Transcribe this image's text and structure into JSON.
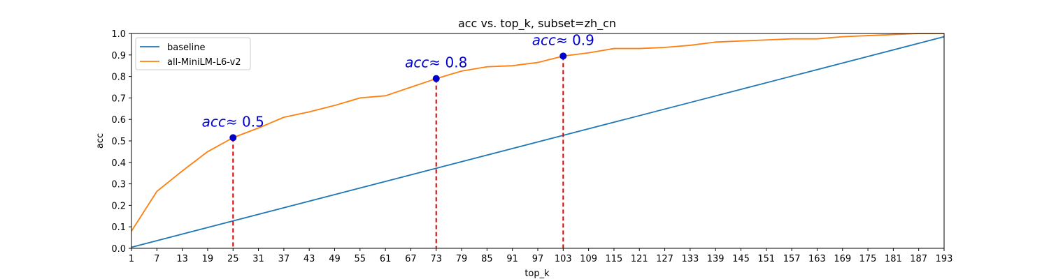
{
  "chart_data": {
    "type": "line",
    "title": "acc vs. top_k, subset=zh_cn",
    "xlabel": "top_k",
    "ylabel": "acc",
    "xlim": [
      1,
      193
    ],
    "ylim": [
      0,
      1.0
    ],
    "x_ticks": [
      1,
      7,
      13,
      19,
      25,
      31,
      37,
      43,
      49,
      55,
      61,
      67,
      73,
      79,
      85,
      91,
      97,
      103,
      109,
      115,
      121,
      127,
      133,
      139,
      145,
      151,
      157,
      163,
      169,
      175,
      181,
      187,
      193
    ],
    "y_ticks": [
      "0.0",
      "0.1",
      "0.2",
      "0.3",
      "0.4",
      "0.5",
      "0.6",
      "0.7",
      "0.8",
      "0.9",
      "1.0"
    ],
    "legend_position": "top-left",
    "grid": false,
    "series": [
      {
        "name": "baseline",
        "color": "#1f77b4",
        "x": [
          1,
          193
        ],
        "y": [
          0.005,
          0.985
        ]
      },
      {
        "name": "all-MiniLM-L6-v2",
        "color": "#ff7f0e",
        "x": [
          1,
          7,
          13,
          19,
          25,
          31,
          37,
          43,
          49,
          55,
          61,
          67,
          73,
          79,
          85,
          91,
          97,
          103,
          109,
          115,
          121,
          127,
          133,
          139,
          145,
          151,
          157,
          163,
          169,
          175,
          181,
          187,
          193
        ],
        "y": [
          0.08,
          0.265,
          0.36,
          0.45,
          0.515,
          0.56,
          0.61,
          0.635,
          0.665,
          0.7,
          0.71,
          0.75,
          0.79,
          0.825,
          0.845,
          0.85,
          0.865,
          0.895,
          0.91,
          0.93,
          0.93,
          0.935,
          0.945,
          0.96,
          0.965,
          0.97,
          0.975,
          0.975,
          0.985,
          0.99,
          0.995,
          1.0,
          1.0
        ]
      }
    ],
    "annotations": [
      {
        "x": 25,
        "y": 0.515,
        "var": "acc",
        "text": "≈ 0.5"
      },
      {
        "x": 73,
        "y": 0.79,
        "var": "acc",
        "text": "≈ 0.8"
      },
      {
        "x": 103,
        "y": 0.895,
        "var": "acc",
        "text": "≈ 0.9"
      }
    ],
    "colors": {
      "marker": "#0000cc",
      "dashed_line": "#dd0000",
      "annotation_text": "#0000cc"
    }
  }
}
